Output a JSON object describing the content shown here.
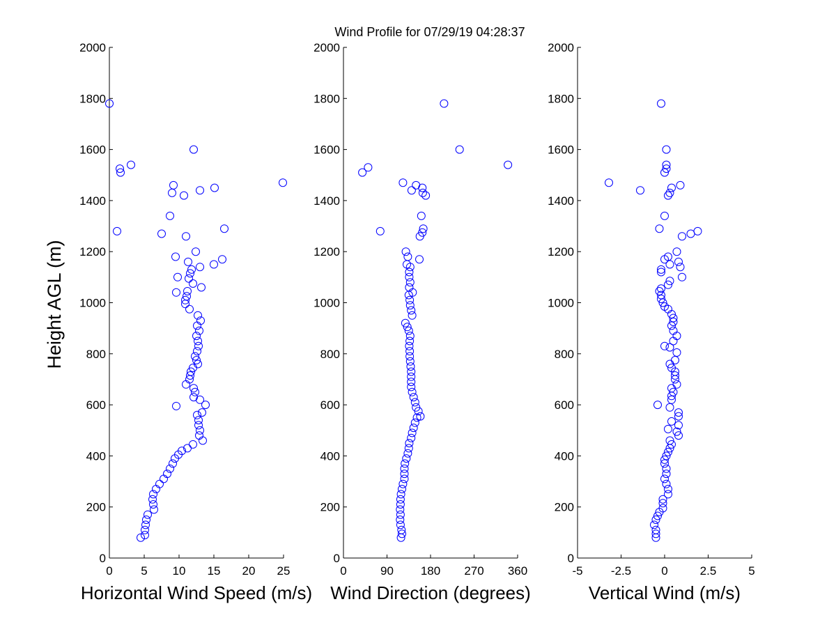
{
  "title": "Wind Profile for  07/29/19 04:28:37",
  "ylabel": "Height AGL (m)",
  "marker_color": "#0000ff",
  "chart_data": [
    {
      "type": "scatter",
      "xlabel": "Horizontal Wind Speed (m/s)",
      "ylabel": "Height AGL (m)",
      "xlim": [
        0,
        25
      ],
      "ylim": [
        0,
        2000
      ],
      "xticks": [
        0,
        5,
        10,
        15,
        20,
        25
      ],
      "xtick_labels": [
        "0",
        "5",
        "10",
        "15",
        "20",
        "25"
      ],
      "yticks": [
        0,
        200,
        400,
        600,
        800,
        1000,
        1200,
        1400,
        1600,
        1800,
        2000
      ],
      "grid": false,
      "marker": "open-circle",
      "points": [
        [
          4.5,
          80
        ],
        [
          5.1,
          90
        ],
        [
          5.1,
          110
        ],
        [
          5.2,
          130
        ],
        [
          5.3,
          150
        ],
        [
          5.5,
          170
        ],
        [
          6.4,
          190
        ],
        [
          6.3,
          210
        ],
        [
          6.2,
          230
        ],
        [
          6.3,
          250
        ],
        [
          6.7,
          270
        ],
        [
          7.2,
          290
        ],
        [
          7.8,
          310
        ],
        [
          8.3,
          330
        ],
        [
          8.7,
          350
        ],
        [
          9.1,
          370
        ],
        [
          9.4,
          390
        ],
        [
          9.9,
          405
        ],
        [
          10.4,
          420
        ],
        [
          11.2,
          430
        ],
        [
          12.0,
          445
        ],
        [
          13.4,
          460
        ],
        [
          12.9,
          480
        ],
        [
          13.0,
          500
        ],
        [
          12.8,
          520
        ],
        [
          12.8,
          540
        ],
        [
          12.6,
          560
        ],
        [
          13.3,
          570
        ],
        [
          13.8,
          600
        ],
        [
          9.6,
          595
        ],
        [
          13.0,
          620
        ],
        [
          12.1,
          630
        ],
        [
          12.3,
          650
        ],
        [
          12.1,
          665
        ],
        [
          11.0,
          680
        ],
        [
          11.5,
          700
        ],
        [
          11.6,
          715
        ],
        [
          11.7,
          730
        ],
        [
          12.0,
          745
        ],
        [
          12.7,
          760
        ],
        [
          12.5,
          775
        ],
        [
          12.3,
          790
        ],
        [
          12.6,
          810
        ],
        [
          12.8,
          830
        ],
        [
          12.7,
          850
        ],
        [
          12.5,
          870
        ],
        [
          12.9,
          890
        ],
        [
          12.6,
          910
        ],
        [
          13.1,
          930
        ],
        [
          12.7,
          950
        ],
        [
          11.5,
          975
        ],
        [
          10.9,
          995
        ],
        [
          10.9,
          1010
        ],
        [
          11.1,
          1025
        ],
        [
          9.6,
          1040
        ],
        [
          11.2,
          1045
        ],
        [
          13.2,
          1060
        ],
        [
          12.0,
          1075
        ],
        [
          11.4,
          1095
        ],
        [
          9.8,
          1100
        ],
        [
          11.6,
          1115
        ],
        [
          11.8,
          1130
        ],
        [
          13.0,
          1140
        ],
        [
          15.0,
          1150
        ],
        [
          11.3,
          1160
        ],
        [
          16.2,
          1170
        ],
        [
          9.5,
          1180
        ],
        [
          12.4,
          1200
        ],
        [
          11.0,
          1260
        ],
        [
          7.5,
          1270
        ],
        [
          1.1,
          1280
        ],
        [
          16.5,
          1290
        ],
        [
          8.7,
          1340
        ],
        [
          10.7,
          1420
        ],
        [
          9.0,
          1430
        ],
        [
          13.0,
          1440
        ],
        [
          15.1,
          1450
        ],
        [
          9.2,
          1460
        ],
        [
          24.9,
          1470
        ],
        [
          1.6,
          1510
        ],
        [
          1.5,
          1525
        ],
        [
          3.1,
          1540
        ],
        [
          12.1,
          1600
        ],
        [
          0.0,
          1780
        ]
      ]
    },
    {
      "type": "scatter",
      "xlabel": "Wind Direction (degrees)",
      "ylabel": "",
      "xlim": [
        0,
        360
      ],
      "ylim": [
        0,
        2000
      ],
      "xticks": [
        0,
        90,
        180,
        270,
        360
      ],
      "xtick_labels": [
        "0",
        "90",
        "180",
        "270",
        "360"
      ],
      "yticks": [
        0,
        200,
        400,
        600,
        800,
        1000,
        1200,
        1400,
        1600,
        1800,
        2000
      ],
      "grid": false,
      "marker": "open-circle",
      "points": [
        [
          119,
          80
        ],
        [
          121,
          95
        ],
        [
          120,
          110
        ],
        [
          118,
          130
        ],
        [
          117,
          150
        ],
        [
          118,
          170
        ],
        [
          117,
          190
        ],
        [
          118,
          210
        ],
        [
          118,
          230
        ],
        [
          119,
          250
        ],
        [
          121,
          270
        ],
        [
          123,
          290
        ],
        [
          126,
          310
        ],
        [
          126,
          330
        ],
        [
          126,
          350
        ],
        [
          127,
          370
        ],
        [
          130,
          390
        ],
        [
          133,
          410
        ],
        [
          135,
          430
        ],
        [
          136,
          450
        ],
        [
          140,
          470
        ],
        [
          142,
          490
        ],
        [
          145,
          510
        ],
        [
          148,
          530
        ],
        [
          152,
          550
        ],
        [
          159,
          555
        ],
        [
          155,
          575
        ],
        [
          150,
          590
        ],
        [
          148,
          610
        ],
        [
          145,
          630
        ],
        [
          142,
          650
        ],
        [
          140,
          670
        ],
        [
          140,
          690
        ],
        [
          140,
          710
        ],
        [
          140,
          730
        ],
        [
          139,
          750
        ],
        [
          138,
          770
        ],
        [
          137,
          790
        ],
        [
          137,
          810
        ],
        [
          136,
          830
        ],
        [
          137,
          850
        ],
        [
          138,
          870
        ],
        [
          135,
          890
        ],
        [
          132,
          905
        ],
        [
          128,
          920
        ],
        [
          142,
          950
        ],
        [
          140,
          970
        ],
        [
          138,
          990
        ],
        [
          137,
          1010
        ],
        [
          135,
          1030
        ],
        [
          143,
          1040
        ],
        [
          136,
          1060
        ],
        [
          138,
          1080
        ],
        [
          136,
          1100
        ],
        [
          136,
          1120
        ],
        [
          138,
          1140
        ],
        [
          131,
          1150
        ],
        [
          157,
          1170
        ],
        [
          133,
          1180
        ],
        [
          129,
          1200
        ],
        [
          158,
          1260
        ],
        [
          163,
          1275
        ],
        [
          76,
          1280
        ],
        [
          165,
          1290
        ],
        [
          161,
          1340
        ],
        [
          170,
          1420
        ],
        [
          164,
          1430
        ],
        [
          141,
          1440
        ],
        [
          163,
          1450
        ],
        [
          150,
          1460
        ],
        [
          123,
          1470
        ],
        [
          39,
          1510
        ],
        [
          51,
          1530
        ],
        [
          340,
          1540
        ],
        [
          240,
          1600
        ],
        [
          208,
          1780
        ]
      ]
    },
    {
      "type": "scatter",
      "xlabel": "Vertical Wind (m/s)",
      "ylabel": "",
      "xlim": [
        -5,
        5
      ],
      "ylim": [
        0,
        2000
      ],
      "xticks": [
        -5,
        -2.5,
        0,
        2.5,
        5
      ],
      "xtick_labels": [
        "-5",
        "-2.5",
        "0",
        "2.5",
        "5"
      ],
      "yticks": [
        0,
        200,
        400,
        600,
        800,
        1000,
        1200,
        1400,
        1600,
        1800,
        2000
      ],
      "grid": false,
      "marker": "open-circle",
      "points": [
        [
          -0.5,
          80
        ],
        [
          -0.5,
          95
        ],
        [
          -0.5,
          110
        ],
        [
          -0.6,
          130
        ],
        [
          -0.5,
          150
        ],
        [
          -0.4,
          165
        ],
        [
          -0.3,
          180
        ],
        [
          -0.1,
          195
        ],
        [
          -0.1,
          215
        ],
        [
          -0.1,
          230
        ],
        [
          0.2,
          250
        ],
        [
          0.2,
          270
        ],
        [
          0.1,
          290
        ],
        [
          0.0,
          310
        ],
        [
          0.1,
          330
        ],
        [
          0.1,
          350
        ],
        [
          0.0,
          370
        ],
        [
          0.0,
          385
        ],
        [
          0.1,
          400
        ],
        [
          0.2,
          415
        ],
        [
          0.3,
          430
        ],
        [
          0.4,
          445
        ],
        [
          0.3,
          460
        ],
        [
          0.8,
          480
        ],
        [
          0.7,
          495
        ],
        [
          0.2,
          505
        ],
        [
          0.8,
          520
        ],
        [
          0.4,
          535
        ],
        [
          0.8,
          555
        ],
        [
          0.8,
          570
        ],
        [
          -0.4,
          600
        ],
        [
          0.3,
          590
        ],
        [
          0.4,
          620
        ],
        [
          0.4,
          635
        ],
        [
          0.5,
          650
        ],
        [
          0.4,
          665
        ],
        [
          0.7,
          680
        ],
        [
          0.6,
          700
        ],
        [
          0.6,
          715
        ],
        [
          0.6,
          730
        ],
        [
          0.4,
          745
        ],
        [
          0.3,
          760
        ],
        [
          0.6,
          775
        ],
        [
          0.7,
          805
        ],
        [
          0.3,
          825
        ],
        [
          0.0,
          830
        ],
        [
          0.5,
          850
        ],
        [
          0.7,
          870
        ],
        [
          0.5,
          890
        ],
        [
          0.4,
          910
        ],
        [
          0.5,
          925
        ],
        [
          0.5,
          940
        ],
        [
          0.4,
          955
        ],
        [
          0.2,
          975
        ],
        [
          0.0,
          985
        ],
        [
          -0.1,
          1000
        ],
        [
          -0.2,
          1015
        ],
        [
          -0.2,
          1030
        ],
        [
          -0.3,
          1045
        ],
        [
          -0.2,
          1055
        ],
        [
          0.2,
          1070
        ],
        [
          0.3,
          1085
        ],
        [
          1.0,
          1100
        ],
        [
          -0.2,
          1120
        ],
        [
          -0.2,
          1130
        ],
        [
          0.9,
          1140
        ],
        [
          0.3,
          1150
        ],
        [
          0.8,
          1160
        ],
        [
          0.0,
          1170
        ],
        [
          0.2,
          1180
        ],
        [
          0.7,
          1200
        ],
        [
          1.0,
          1260
        ],
        [
          1.5,
          1270
        ],
        [
          1.9,
          1280
        ],
        [
          -0.3,
          1290
        ],
        [
          0.0,
          1340
        ],
        [
          0.2,
          1420
        ],
        [
          0.3,
          1430
        ],
        [
          -1.4,
          1440
        ],
        [
          0.4,
          1450
        ],
        [
          0.9,
          1460
        ],
        [
          -3.2,
          1470
        ],
        [
          0.0,
          1510
        ],
        [
          0.1,
          1525
        ],
        [
          0.1,
          1540
        ],
        [
          0.1,
          1600
        ],
        [
          -0.2,
          1780
        ]
      ]
    }
  ]
}
